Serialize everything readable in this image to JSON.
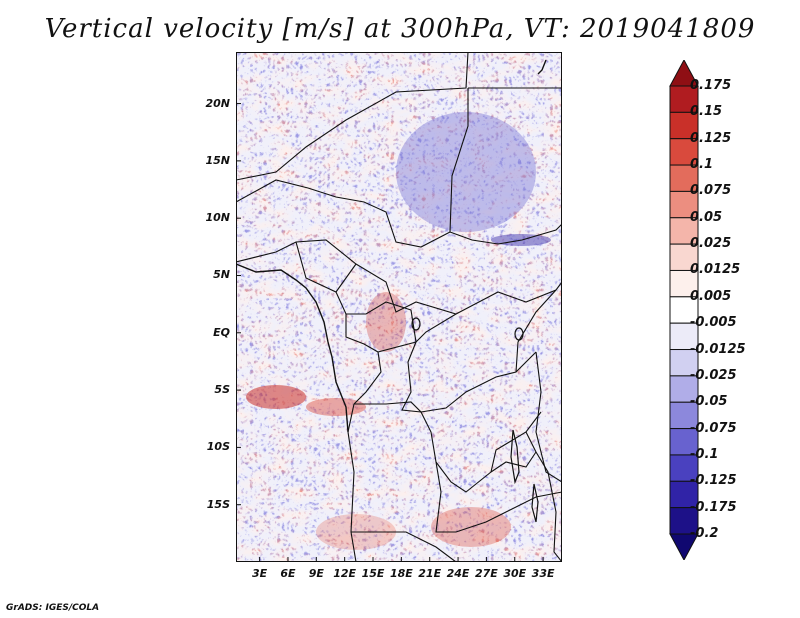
{
  "title": "Vertical velocity [m/s] at 300hPa, VT: 2019041809",
  "footer": "GrADS: IGES/COLA",
  "map": {
    "lat_labels": [
      "20N",
      "15N",
      "10N",
      "5N",
      "EQ",
      "5S",
      "10S",
      "15S"
    ],
    "lat_values": [
      20,
      15,
      10,
      5,
      0,
      -5,
      -10,
      -15
    ],
    "lon_labels": [
      "3E",
      "6E",
      "9E",
      "12E",
      "15E",
      "18E",
      "21E",
      "24E",
      "27E",
      "30E",
      "33E"
    ],
    "lon_values": [
      3,
      6,
      9,
      12,
      15,
      18,
      21,
      24,
      27,
      30,
      33
    ],
    "lat_range": [
      -20,
      24.5
    ],
    "lon_range": [
      0.5,
      35
    ]
  },
  "colorbar": {
    "labels": [
      "0.175",
      "0.15",
      "0.125",
      "0.1",
      "0.075",
      "0.05",
      "0.025",
      "0.0125",
      "0.005",
      "-0.005",
      "-0.0125",
      "-0.025",
      "-0.05",
      "-0.075",
      "-0.1",
      "-0.125",
      "-0.175",
      "-0.2"
    ],
    "colors": [
      "#8f0f14",
      "#b01c20",
      "#c93029",
      "#d94a3d",
      "#e36c5c",
      "#ec8e80",
      "#f4b5aa",
      "#f9d7d0",
      "#fdf0ec",
      "#ffffff",
      "#ecebf8",
      "#d1d0f1",
      "#b0ade8",
      "#8c88dc",
      "#6862cf",
      "#4a41bf",
      "#3023a7",
      "#1d1188",
      "#100870"
    ]
  }
}
